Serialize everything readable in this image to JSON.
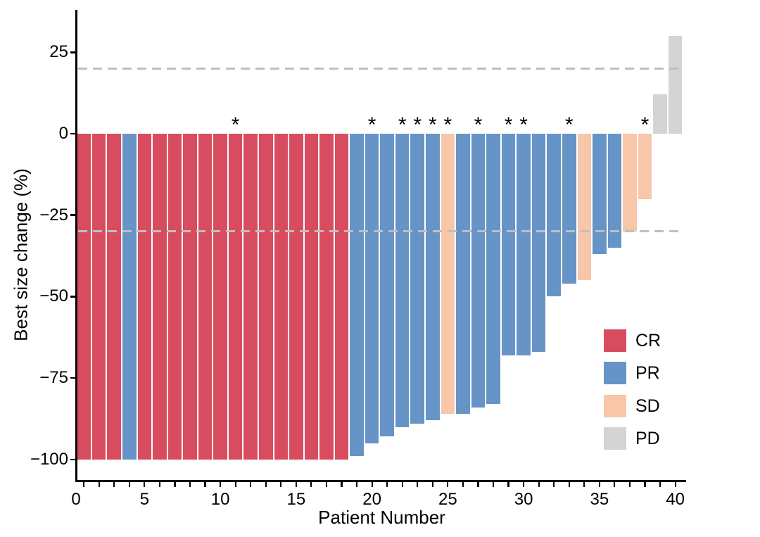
{
  "figure": {
    "background": "#ffffff"
  },
  "colors": {
    "CR": "#d84c60",
    "PR": "#6694c7",
    "SD": "#f8c6a8",
    "PD": "#d4d4d4",
    "reference_line": "#bfbfbf",
    "axis": "#000000"
  },
  "chart_data": {
    "type": "bar",
    "title": "",
    "xlabel": "Patient Number",
    "ylabel": "Best size change (%)",
    "xlim": [
      0,
      41
    ],
    "ylim": [
      -107,
      36
    ],
    "grid": false,
    "legend_position": "inside-right",
    "x_labeled_ticks": [
      0,
      5,
      10,
      15,
      20,
      25,
      30,
      35,
      40
    ],
    "x_minor_ticks_every": 1,
    "y_ticks": [
      {
        "v": 25,
        "label": "25"
      },
      {
        "v": 0,
        "label": "0"
      },
      {
        "v": -25,
        "label": "−25"
      },
      {
        "v": -50,
        "label": "−50"
      },
      {
        "v": -75,
        "label": "−75"
      },
      {
        "v": -100,
        "label": "−100"
      }
    ],
    "reference_lines": [
      20,
      -30
    ],
    "marker_glyph": "*",
    "legend": [
      {
        "label": "CR",
        "color": "#d84c60"
      },
      {
        "label": "PR",
        "color": "#6694c7"
      },
      {
        "label": "SD",
        "color": "#f8c6a8"
      },
      {
        "label": "PD",
        "color": "#d4d4d4"
      }
    ],
    "patients": [
      {
        "patient": 1,
        "value": -100,
        "response": "CR",
        "marked": false
      },
      {
        "patient": 2,
        "value": -100,
        "response": "CR",
        "marked": false
      },
      {
        "patient": 3,
        "value": -100,
        "response": "CR",
        "marked": false
      },
      {
        "patient": 4,
        "value": -100,
        "response": "PR",
        "marked": false
      },
      {
        "patient": 5,
        "value": -100,
        "response": "CR",
        "marked": false
      },
      {
        "patient": 6,
        "value": -100,
        "response": "CR",
        "marked": false
      },
      {
        "patient": 7,
        "value": -100,
        "response": "CR",
        "marked": false
      },
      {
        "patient": 8,
        "value": -100,
        "response": "CR",
        "marked": false
      },
      {
        "patient": 9,
        "value": -100,
        "response": "CR",
        "marked": false
      },
      {
        "patient": 10,
        "value": -100,
        "response": "CR",
        "marked": false
      },
      {
        "patient": 11,
        "value": -100,
        "response": "CR",
        "marked": true
      },
      {
        "patient": 12,
        "value": -100,
        "response": "CR",
        "marked": false
      },
      {
        "patient": 13,
        "value": -100,
        "response": "CR",
        "marked": false
      },
      {
        "patient": 14,
        "value": -100,
        "response": "CR",
        "marked": false
      },
      {
        "patient": 15,
        "value": -100,
        "response": "CR",
        "marked": false
      },
      {
        "patient": 16,
        "value": -100,
        "response": "CR",
        "marked": false
      },
      {
        "patient": 17,
        "value": -100,
        "response": "CR",
        "marked": false
      },
      {
        "patient": 18,
        "value": -100,
        "response": "CR",
        "marked": false
      },
      {
        "patient": 19,
        "value": -99,
        "response": "PR",
        "marked": false
      },
      {
        "patient": 20,
        "value": -95,
        "response": "PR",
        "marked": true
      },
      {
        "patient": 21,
        "value": -93,
        "response": "PR",
        "marked": false
      },
      {
        "patient": 22,
        "value": -90,
        "response": "PR",
        "marked": true
      },
      {
        "patient": 23,
        "value": -89,
        "response": "PR",
        "marked": true
      },
      {
        "patient": 24,
        "value": -88,
        "response": "PR",
        "marked": true
      },
      {
        "patient": 25,
        "value": -86,
        "response": "SD",
        "marked": true
      },
      {
        "patient": 26,
        "value": -86,
        "response": "PR",
        "marked": false
      },
      {
        "patient": 27,
        "value": -84,
        "response": "PR",
        "marked": true
      },
      {
        "patient": 28,
        "value": -83,
        "response": "PR",
        "marked": false
      },
      {
        "patient": 29,
        "value": -68,
        "response": "PR",
        "marked": true
      },
      {
        "patient": 30,
        "value": -68,
        "response": "PR",
        "marked": true
      },
      {
        "patient": 31,
        "value": -67,
        "response": "PR",
        "marked": false
      },
      {
        "patient": 32,
        "value": -50,
        "response": "PR",
        "marked": false
      },
      {
        "patient": 33,
        "value": -46,
        "response": "PR",
        "marked": true
      },
      {
        "patient": 34,
        "value": -45,
        "response": "SD",
        "marked": false
      },
      {
        "patient": 35,
        "value": -37,
        "response": "PR",
        "marked": false
      },
      {
        "patient": 36,
        "value": -35,
        "response": "PR",
        "marked": false
      },
      {
        "patient": 37,
        "value": -30,
        "response": "SD",
        "marked": false
      },
      {
        "patient": 38,
        "value": -20,
        "response": "SD",
        "marked": true
      },
      {
        "patient": 39,
        "value": 12,
        "response": "PD",
        "marked": false
      },
      {
        "patient": 40,
        "value": 30,
        "response": "PD",
        "marked": false
      }
    ]
  }
}
